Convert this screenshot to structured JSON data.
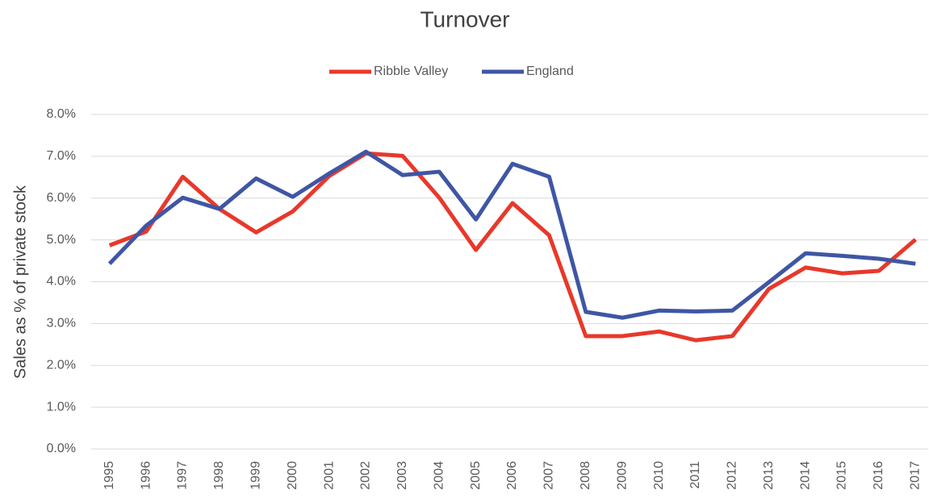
{
  "chart_data": {
    "type": "line",
    "title": "Turnover",
    "y_axis_label": "Sales as % of private stock",
    "categories": [
      "1995",
      "1996",
      "1997",
      "1998",
      "1999",
      "2000",
      "2001",
      "2002",
      "2003",
      "2004",
      "2005",
      "2006",
      "2007",
      "2008",
      "2009",
      "2010",
      "2011",
      "2012",
      "2013",
      "2014",
      "2015",
      "2016",
      "2017"
    ],
    "series": [
      {
        "name": "Ribble Valley",
        "color": "#e8382b",
        "values": [
          4.87,
          5.2,
          6.51,
          5.74,
          5.18,
          5.68,
          6.53,
          7.07,
          7.01,
          6.01,
          4.76,
          5.88,
          5.11,
          2.7,
          2.7,
          2.81,
          2.6,
          2.7,
          3.83,
          4.34,
          4.2,
          4.26,
          5.01
        ]
      },
      {
        "name": "England",
        "color": "#3f56a5",
        "values": [
          4.43,
          5.34,
          6.01,
          5.74,
          6.47,
          6.03,
          6.59,
          7.11,
          6.55,
          6.63,
          5.49,
          6.82,
          6.51,
          3.28,
          3.14,
          3.31,
          3.29,
          3.31,
          3.99,
          4.68,
          4.62,
          4.55,
          4.43
        ]
      }
    ],
    "ylim": [
      0,
      8
    ],
    "yticks": [
      {
        "value": 0,
        "label": "0.0%"
      },
      {
        "value": 1,
        "label": "1.0%"
      },
      {
        "value": 2,
        "label": "2.0%"
      },
      {
        "value": 3,
        "label": "3.0%"
      },
      {
        "value": 4,
        "label": "4.0%"
      },
      {
        "value": 5,
        "label": "5.0%"
      },
      {
        "value": 6,
        "label": "6.0%"
      },
      {
        "value": 7,
        "label": "7.0%"
      },
      {
        "value": 8,
        "label": "8.0%"
      }
    ],
    "grid": true,
    "legend": "top"
  }
}
